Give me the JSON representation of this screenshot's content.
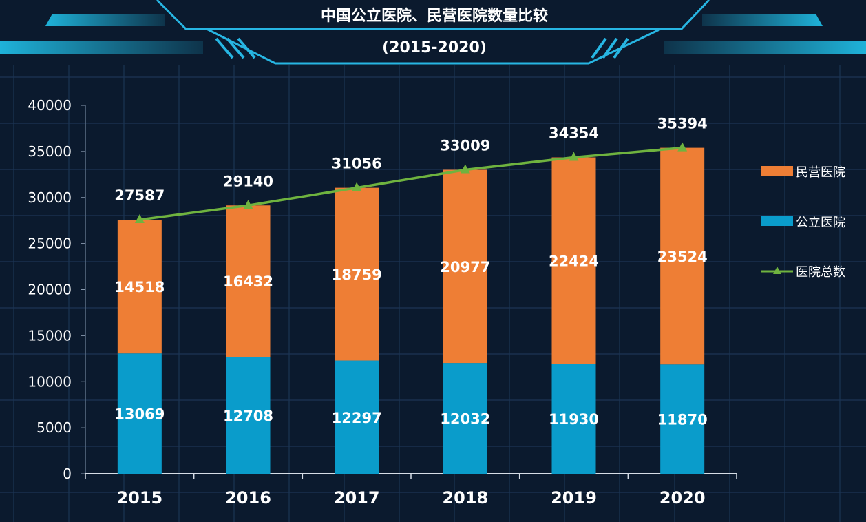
{
  "chart_data": {
    "type": "bar",
    "stacked": true,
    "title": "中国公立医院、民营医院数量比较",
    "subtitle": "(2015-2020)",
    "categories": [
      "2015",
      "2016",
      "2017",
      "2018",
      "2019",
      "2020"
    ],
    "series": [
      {
        "name": "公立医院",
        "kind": "bar",
        "color": "#0a9ccb",
        "values": [
          13069,
          12708,
          12297,
          12032,
          11930,
          11870
        ]
      },
      {
        "name": "民营医院",
        "kind": "bar",
        "color": "#ee7e35",
        "values": [
          14518,
          16432,
          18759,
          20977,
          22424,
          23524
        ]
      },
      {
        "name": "医院总数",
        "kind": "line",
        "color": "#6fb33f",
        "marker": "triangle",
        "values": [
          27587,
          29140,
          31056,
          33009,
          34354,
          35394
        ]
      }
    ],
    "legend_order": [
      "民营医院",
      "公立医院",
      "医院总数"
    ],
    "ylim": [
      0,
      40000
    ],
    "yticks": [
      "0",
      "5000",
      "10000",
      "15000",
      "20000",
      "25000",
      "30000",
      "35000",
      "40000"
    ],
    "xlabel": "",
    "ylabel": "",
    "grid": true,
    "legend_position": "right"
  }
}
